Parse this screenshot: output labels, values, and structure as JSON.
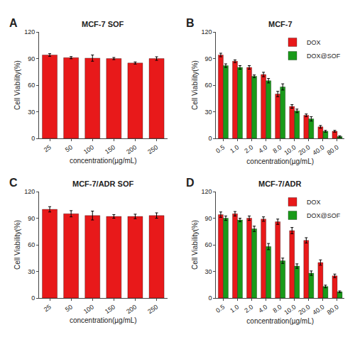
{
  "chart_data": [
    {
      "type": "bar",
      "title": "MCF-7 SOF",
      "annotations": [
        "A"
      ],
      "categories": [
        "25",
        "50",
        "100",
        "150",
        "200",
        "250"
      ],
      "xlabel": "concentration(µg/mL)",
      "ylabel": "Cell Viability(%)",
      "values": [
        94,
        91,
        90.5,
        90,
        85,
        90
      ],
      "errors": [
        1.5,
        1.2,
        3.5,
        1.2,
        1.2,
        2.0
      ],
      "color": "#e8191a",
      "ylim": [
        0,
        120
      ],
      "yticks": [
        0,
        30,
        60,
        90,
        120
      ],
      "grid": false
    },
    {
      "type": "bar",
      "title": "MCF-7",
      "annotations": [
        "B"
      ],
      "categories": [
        "0.5",
        "1.0",
        "2.0",
        "4.0",
        "8.0",
        "10.0",
        "20.0",
        "40.0",
        "80.0"
      ],
      "xlabel": "concentration(µg/mL)",
      "ylabel": "Cell Viability(%)",
      "series": [
        {
          "name": "DOX",
          "color": "#e8191a",
          "values": [
            94,
            87,
            80,
            72,
            50,
            36,
            26,
            13,
            8
          ],
          "errors": [
            2.0,
            1.5,
            2.0,
            2.5,
            3.0,
            2.0,
            1.5,
            1.5,
            1.0
          ]
        },
        {
          "name": "DOX@SOF",
          "color": "#1a9a1a",
          "values": [
            82,
            80,
            70,
            65,
            58,
            31,
            22,
            8,
            2
          ],
          "errors": [
            2.0,
            2.0,
            1.5,
            2.5,
            3.5,
            2.0,
            2.5,
            1.0,
            0.8
          ]
        }
      ],
      "ylim": [
        0,
        120
      ],
      "yticks": [
        0,
        30,
        60,
        90,
        120
      ],
      "grid": false,
      "legend": "upper right"
    },
    {
      "type": "bar",
      "title": "MCF-7/ADR SOF",
      "annotations": [
        "C"
      ],
      "categories": [
        "25",
        "50",
        "100",
        "150",
        "200",
        "250"
      ],
      "xlabel": "concentration(µg/mL)",
      "ylabel": "Cell Viability(%)",
      "values": [
        100,
        95,
        93,
        92,
        92,
        93
      ],
      "errors": [
        3.0,
        3.5,
        5.0,
        2.0,
        2.5,
        3.0
      ],
      "color": "#e8191a",
      "ylim": [
        0,
        120
      ],
      "yticks": [
        0,
        30,
        60,
        90,
        120
      ],
      "grid": false
    },
    {
      "type": "bar",
      "title": "MCF-7/ADR",
      "annotations": [
        "D"
      ],
      "categories": [
        "0.5",
        "1.0",
        "2.0",
        "4.0",
        "8.0",
        "10.0",
        "20.0",
        "40.0",
        "80.0"
      ],
      "xlabel": "concentration(µg/mL)",
      "ylabel": "Cell Viability(%)",
      "series": [
        {
          "name": "DOX",
          "color": "#e8191a",
          "values": [
            94,
            95,
            90,
            89,
            86,
            76,
            65,
            40,
            25
          ],
          "errors": [
            3.0,
            2.5,
            2.5,
            2.5,
            3.0,
            3.5,
            3.0,
            3.0,
            2.0
          ]
        },
        {
          "name": "DOX@SOF",
          "color": "#1a9a1a",
          "values": [
            90,
            88,
            78,
            58,
            42,
            36,
            28,
            13,
            7
          ],
          "errors": [
            2.5,
            2.0,
            3.0,
            3.5,
            3.0,
            2.5,
            2.5,
            1.5,
            1.0
          ]
        }
      ],
      "ylim": [
        0,
        120
      ],
      "yticks": [
        0,
        30,
        60,
        90,
        120
      ],
      "grid": false,
      "legend": "upper right"
    }
  ]
}
